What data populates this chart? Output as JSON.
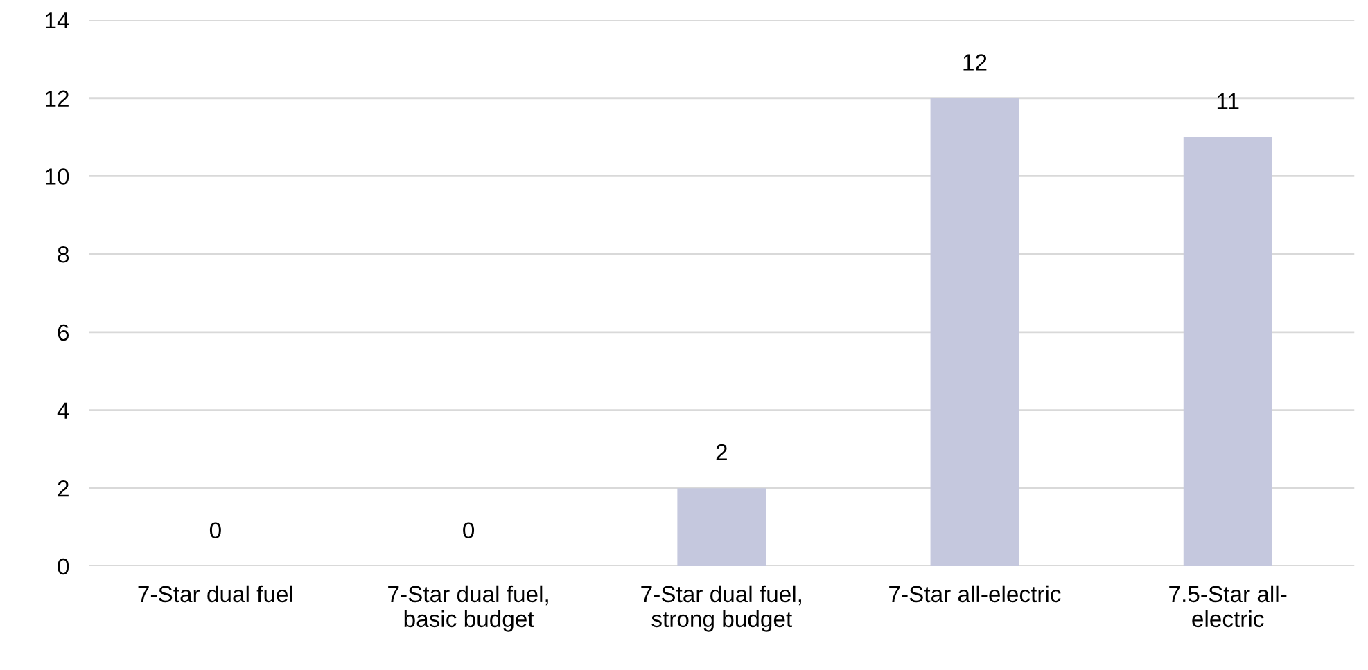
{
  "chart_data": {
    "type": "bar",
    "categories": [
      "7-Star dual fuel",
      "7-Star dual fuel,\nbasic budget",
      "7-Star dual fuel,\nstrong budget",
      "7-Star all-electric",
      "7.5-Star all-\nelectric"
    ],
    "values": [
      0,
      0,
      2,
      12,
      11
    ],
    "color": "#c5c8de",
    "ylim": [
      0,
      14
    ],
    "yticks": [
      0,
      2,
      4,
      6,
      8,
      10,
      12,
      14
    ],
    "grid": "y",
    "data_labels": true
  }
}
